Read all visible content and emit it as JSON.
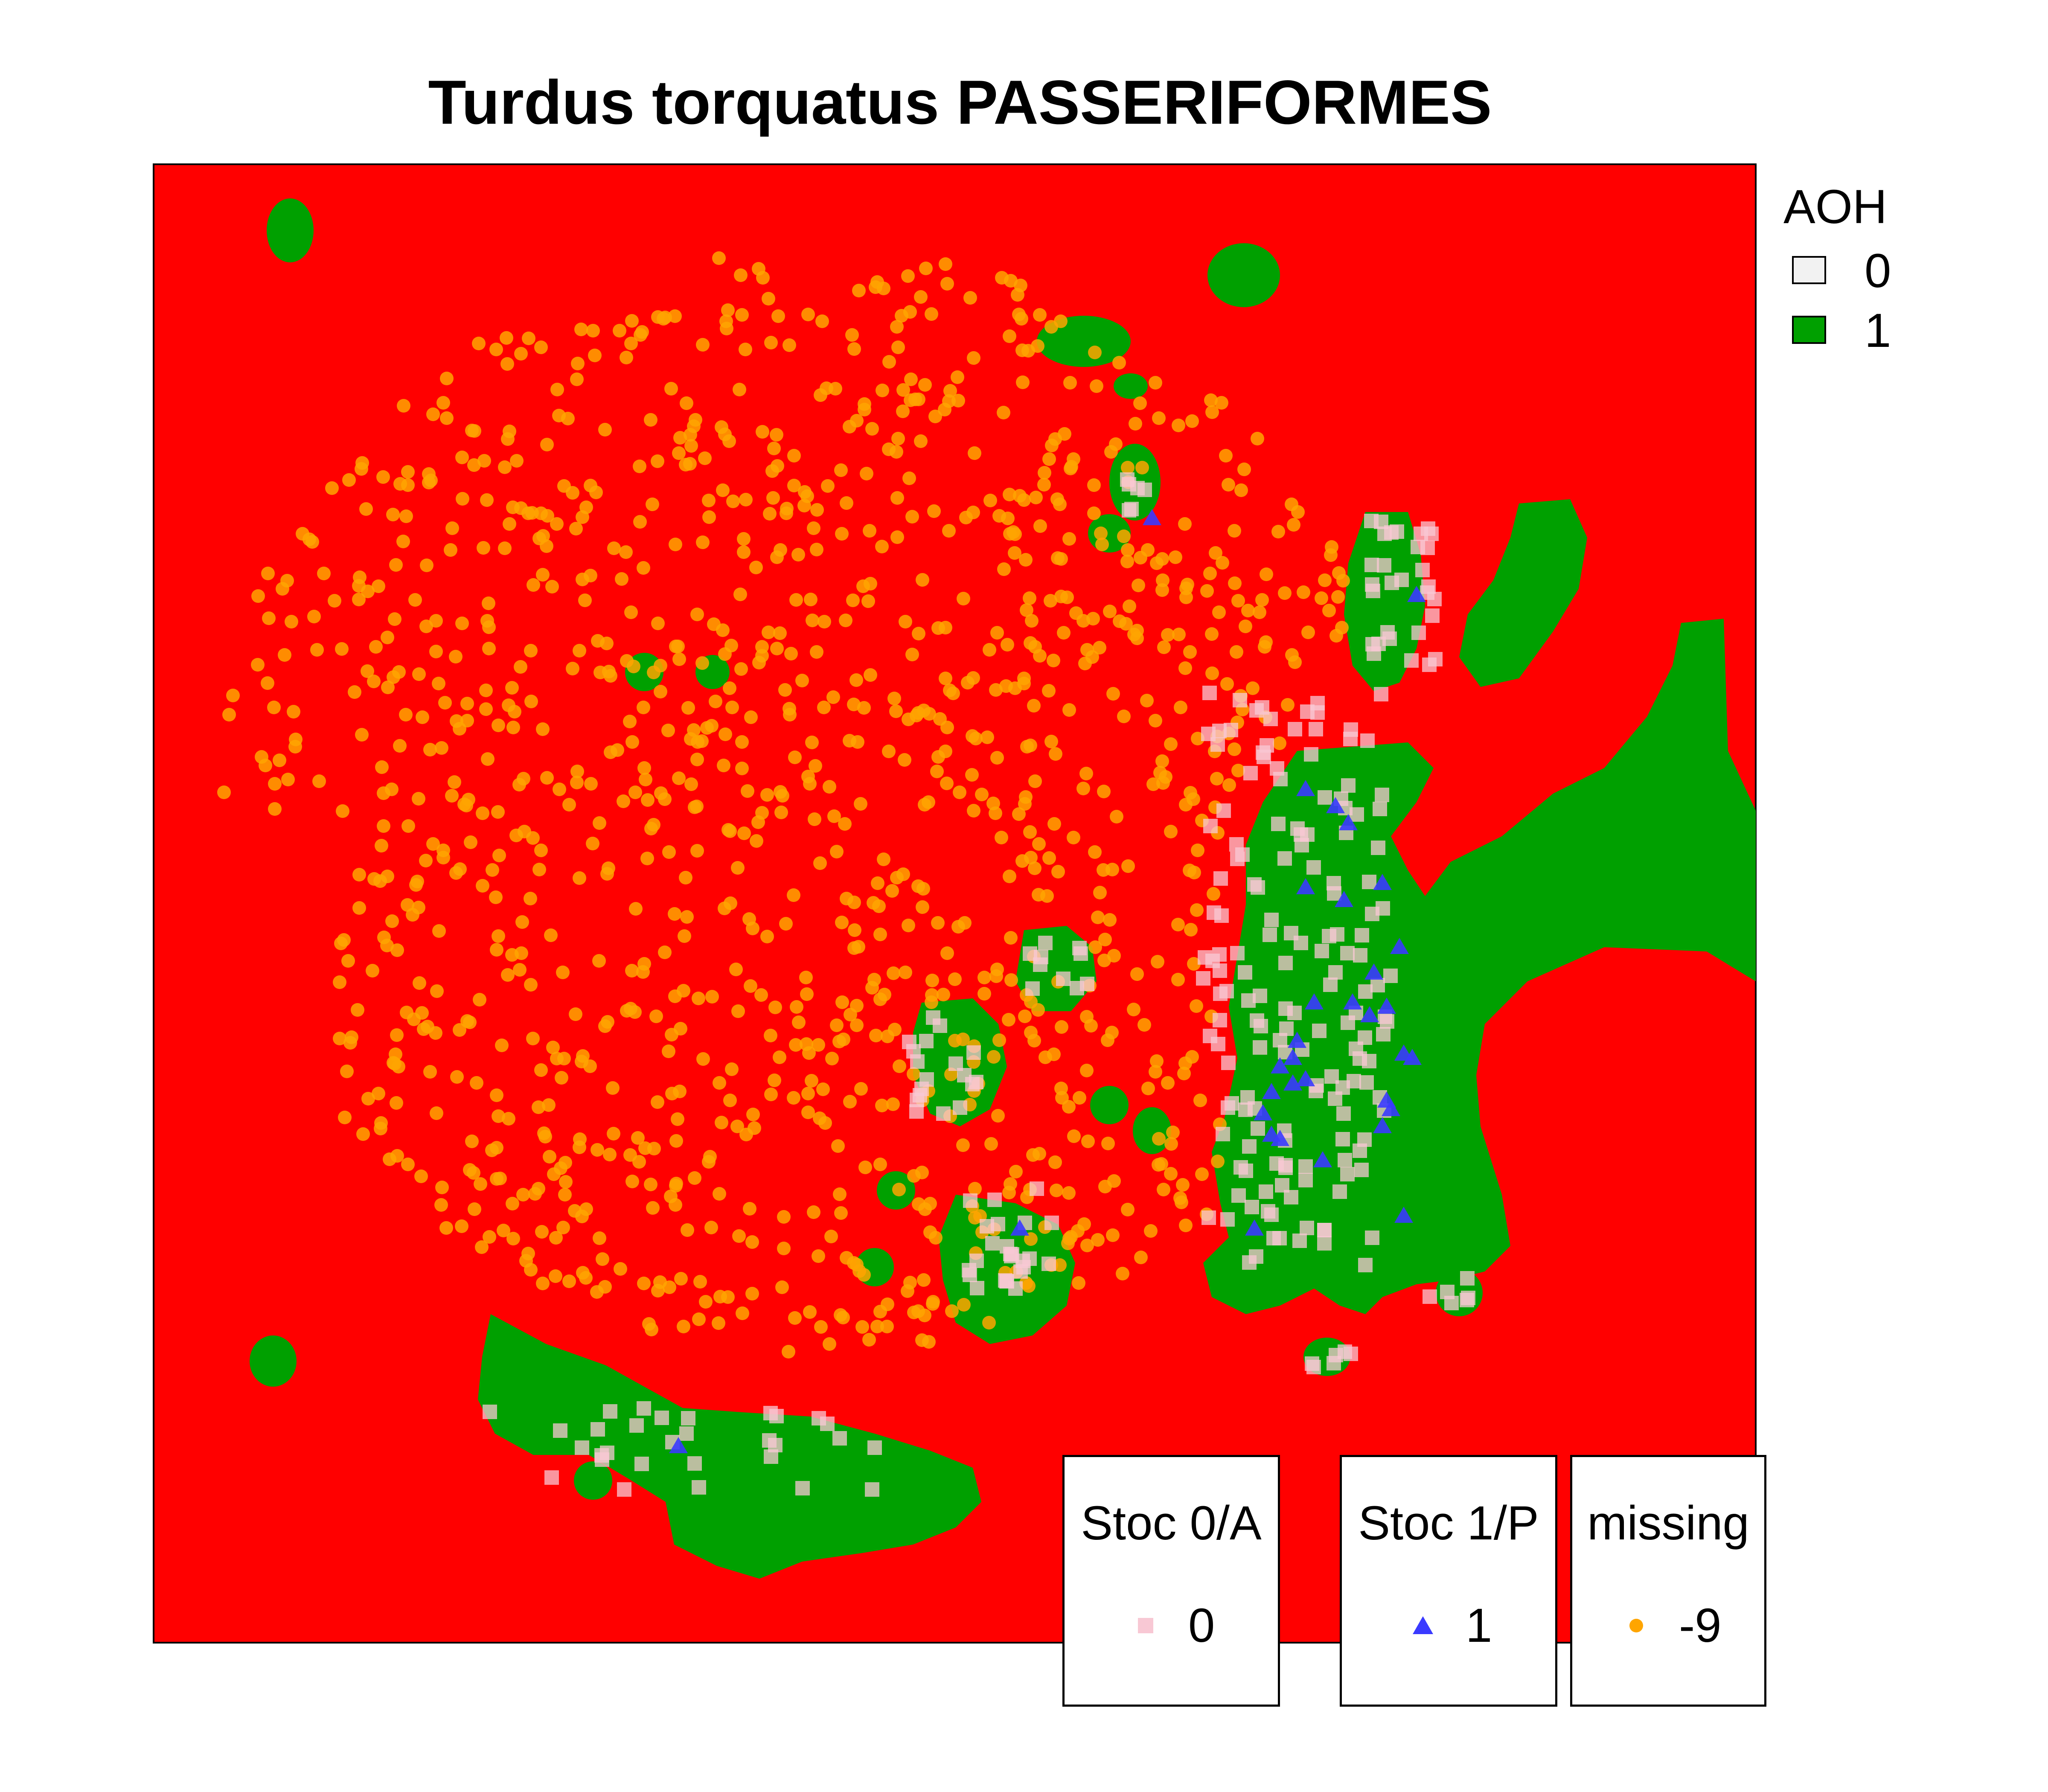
{
  "title": "Turdus torquatus PASSERIFORMES",
  "colors": {
    "background_unsuitable": "#ff0000",
    "aoh_1": "#00a000",
    "aoh_0": "#f2f2f2",
    "stoc_0": "#f8c8d4",
    "stoc_1": "#3a3aff",
    "missing": "#ffa500"
  },
  "legend_aoh": {
    "title": "AOH",
    "items": [
      {
        "label": "0",
        "color": "#f2f2f2"
      },
      {
        "label": "1",
        "color": "#00a000"
      }
    ]
  },
  "legend_points": [
    {
      "title": "Stoc 0/A",
      "label": "0",
      "marker": "square",
      "color": "#f8c8d4"
    },
    {
      "title": "Stoc 1/P",
      "label": "1",
      "marker": "triangle",
      "color": "#3a3aff"
    },
    {
      "title": "missing",
      "label": "-9",
      "marker": "circle",
      "color": "#ffa500"
    }
  ]
}
